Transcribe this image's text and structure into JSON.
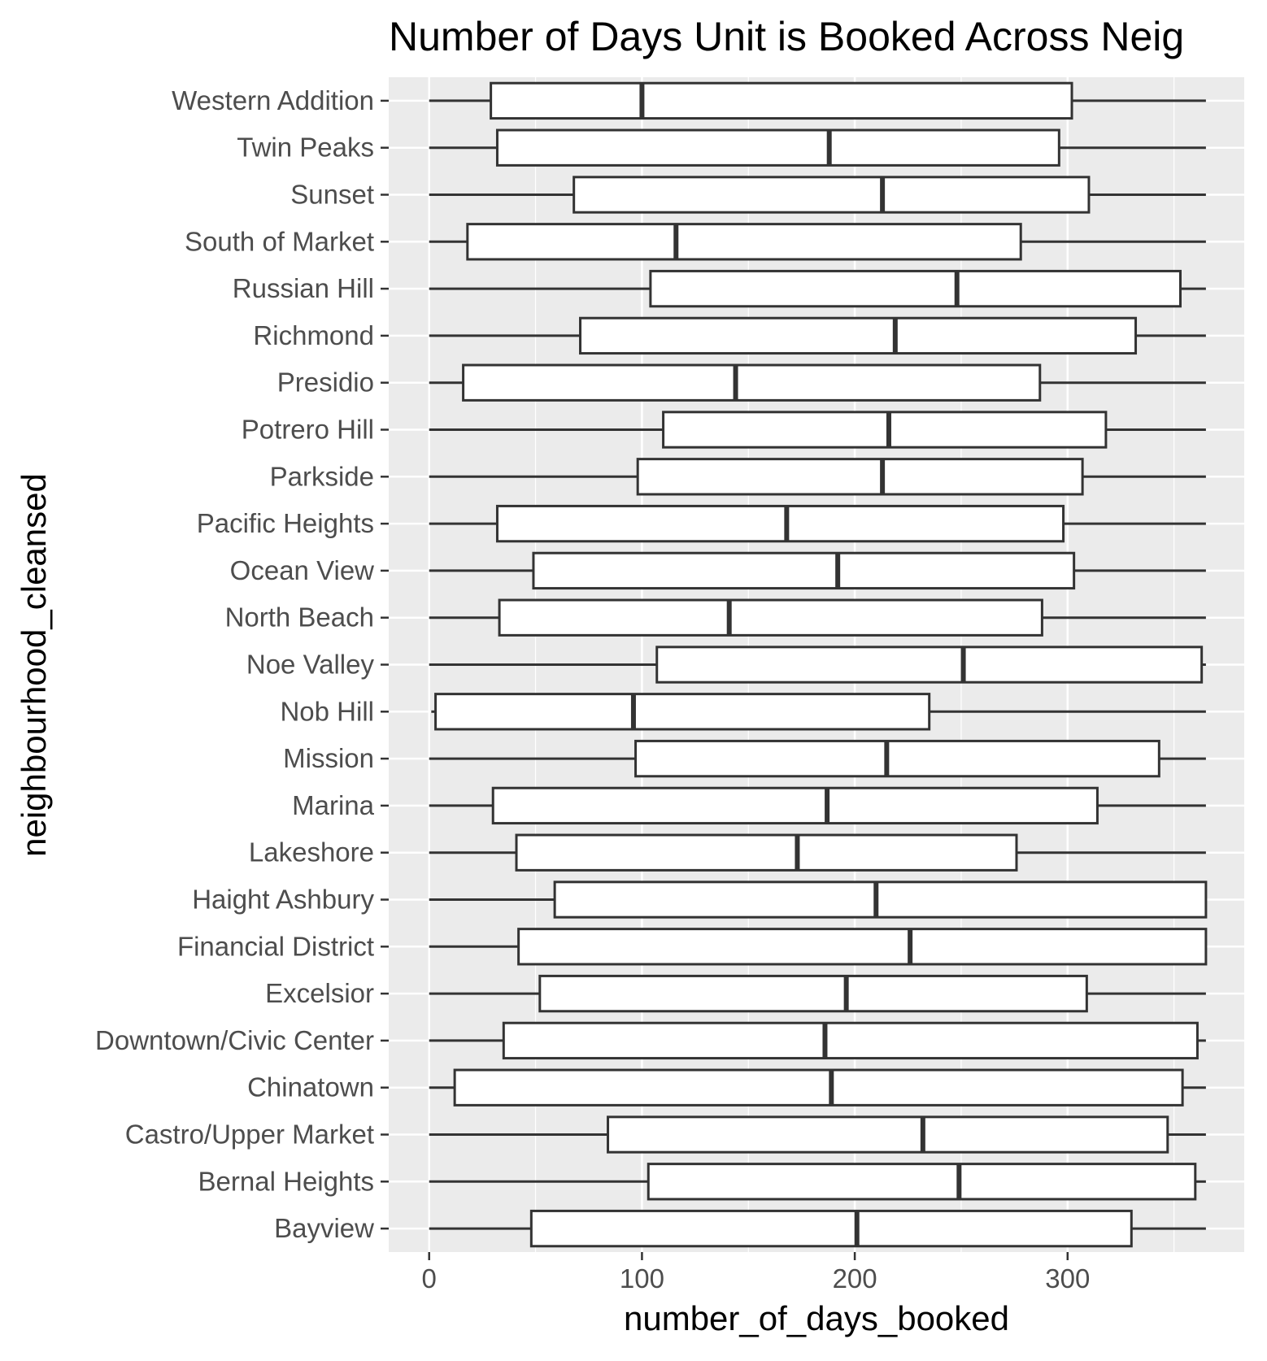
{
  "chart_data": {
    "type": "boxplot",
    "orientation": "horizontal",
    "title": "Number of Days Unit is Booked Across Neig",
    "xlabel": "number_of_days_booked",
    "ylabel": "neighbourhood_cleansed",
    "xlim": [
      -19,
      383
    ],
    "x_ticks": [
      0,
      100,
      200,
      300
    ],
    "x_tick_labels": [
      "0",
      "100",
      "200",
      "300"
    ],
    "grid": true,
    "colors": {
      "panel_background": "#ebebeb",
      "grid_line": "#ffffff",
      "box_fill": "#ffffff",
      "box_stroke": "#333333",
      "tick_label": "#4d4d4d"
    },
    "series": [
      {
        "category": "Western Addition",
        "whisker_low": 0,
        "q1": 29,
        "median": 100,
        "q3": 302,
        "whisker_high": 365
      },
      {
        "category": "Twin Peaks",
        "whisker_low": 0,
        "q1": 32,
        "median": 188,
        "q3": 296,
        "whisker_high": 365
      },
      {
        "category": "Sunset",
        "whisker_low": 0,
        "q1": 68,
        "median": 213,
        "q3": 310,
        "whisker_high": 365
      },
      {
        "category": "South of Market",
        "whisker_low": 0,
        "q1": 18,
        "median": 116,
        "q3": 278,
        "whisker_high": 365
      },
      {
        "category": "Russian Hill",
        "whisker_low": 0,
        "q1": 104,
        "median": 248,
        "q3": 353,
        "whisker_high": 365
      },
      {
        "category": "Richmond",
        "whisker_low": 0,
        "q1": 71,
        "median": 219,
        "q3": 332,
        "whisker_high": 365
      },
      {
        "category": "Presidio",
        "whisker_low": 0,
        "q1": 16,
        "median": 144,
        "q3": 287,
        "whisker_high": 365
      },
      {
        "category": "Potrero Hill",
        "whisker_low": 0,
        "q1": 110,
        "median": 216,
        "q3": 318,
        "whisker_high": 365
      },
      {
        "category": "Parkside",
        "whisker_low": 0,
        "q1": 98,
        "median": 213,
        "q3": 307,
        "whisker_high": 365
      },
      {
        "category": "Pacific Heights",
        "whisker_low": 0,
        "q1": 32,
        "median": 168,
        "q3": 298,
        "whisker_high": 365
      },
      {
        "category": "Ocean View",
        "whisker_low": 0,
        "q1": 49,
        "median": 192,
        "q3": 303,
        "whisker_high": 365
      },
      {
        "category": "North Beach",
        "whisker_low": 0,
        "q1": 33,
        "median": 141,
        "q3": 288,
        "whisker_high": 365
      },
      {
        "category": "Noe Valley",
        "whisker_low": 0,
        "q1": 107,
        "median": 251,
        "q3": 363,
        "whisker_high": 365
      },
      {
        "category": "Nob Hill",
        "whisker_low": 1,
        "q1": 3,
        "median": 96,
        "q3": 235,
        "whisker_high": 365
      },
      {
        "category": "Mission",
        "whisker_low": 0,
        "q1": 97,
        "median": 215,
        "q3": 343,
        "whisker_high": 365
      },
      {
        "category": "Marina",
        "whisker_low": 0,
        "q1": 30,
        "median": 187,
        "q3": 314,
        "whisker_high": 365
      },
      {
        "category": "Lakeshore",
        "whisker_low": 0,
        "q1": 41,
        "median": 173,
        "q3": 276,
        "whisker_high": 365
      },
      {
        "category": "Haight Ashbury",
        "whisker_low": 0,
        "q1": 59,
        "median": 210,
        "q3": 365,
        "whisker_high": 365
      },
      {
        "category": "Financial District",
        "whisker_low": 0,
        "q1": 42,
        "median": 226,
        "q3": 365,
        "whisker_high": 365
      },
      {
        "category": "Excelsior",
        "whisker_low": 0,
        "q1": 52,
        "median": 196,
        "q3": 309,
        "whisker_high": 365
      },
      {
        "category": "Downtown/Civic Center",
        "whisker_low": 0,
        "q1": 35,
        "median": 186,
        "q3": 361,
        "whisker_high": 365
      },
      {
        "category": "Chinatown",
        "whisker_low": 0,
        "q1": 12,
        "median": 189,
        "q3": 354,
        "whisker_high": 365
      },
      {
        "category": "Castro/Upper Market",
        "whisker_low": 0,
        "q1": 84,
        "median": 232,
        "q3": 347,
        "whisker_high": 365
      },
      {
        "category": "Bernal Heights",
        "whisker_low": 0,
        "q1": 103,
        "median": 249,
        "q3": 360,
        "whisker_high": 365
      },
      {
        "category": "Bayview",
        "whisker_low": 0,
        "q1": 48,
        "median": 201,
        "q3": 330,
        "whisker_high": 365
      }
    ]
  }
}
